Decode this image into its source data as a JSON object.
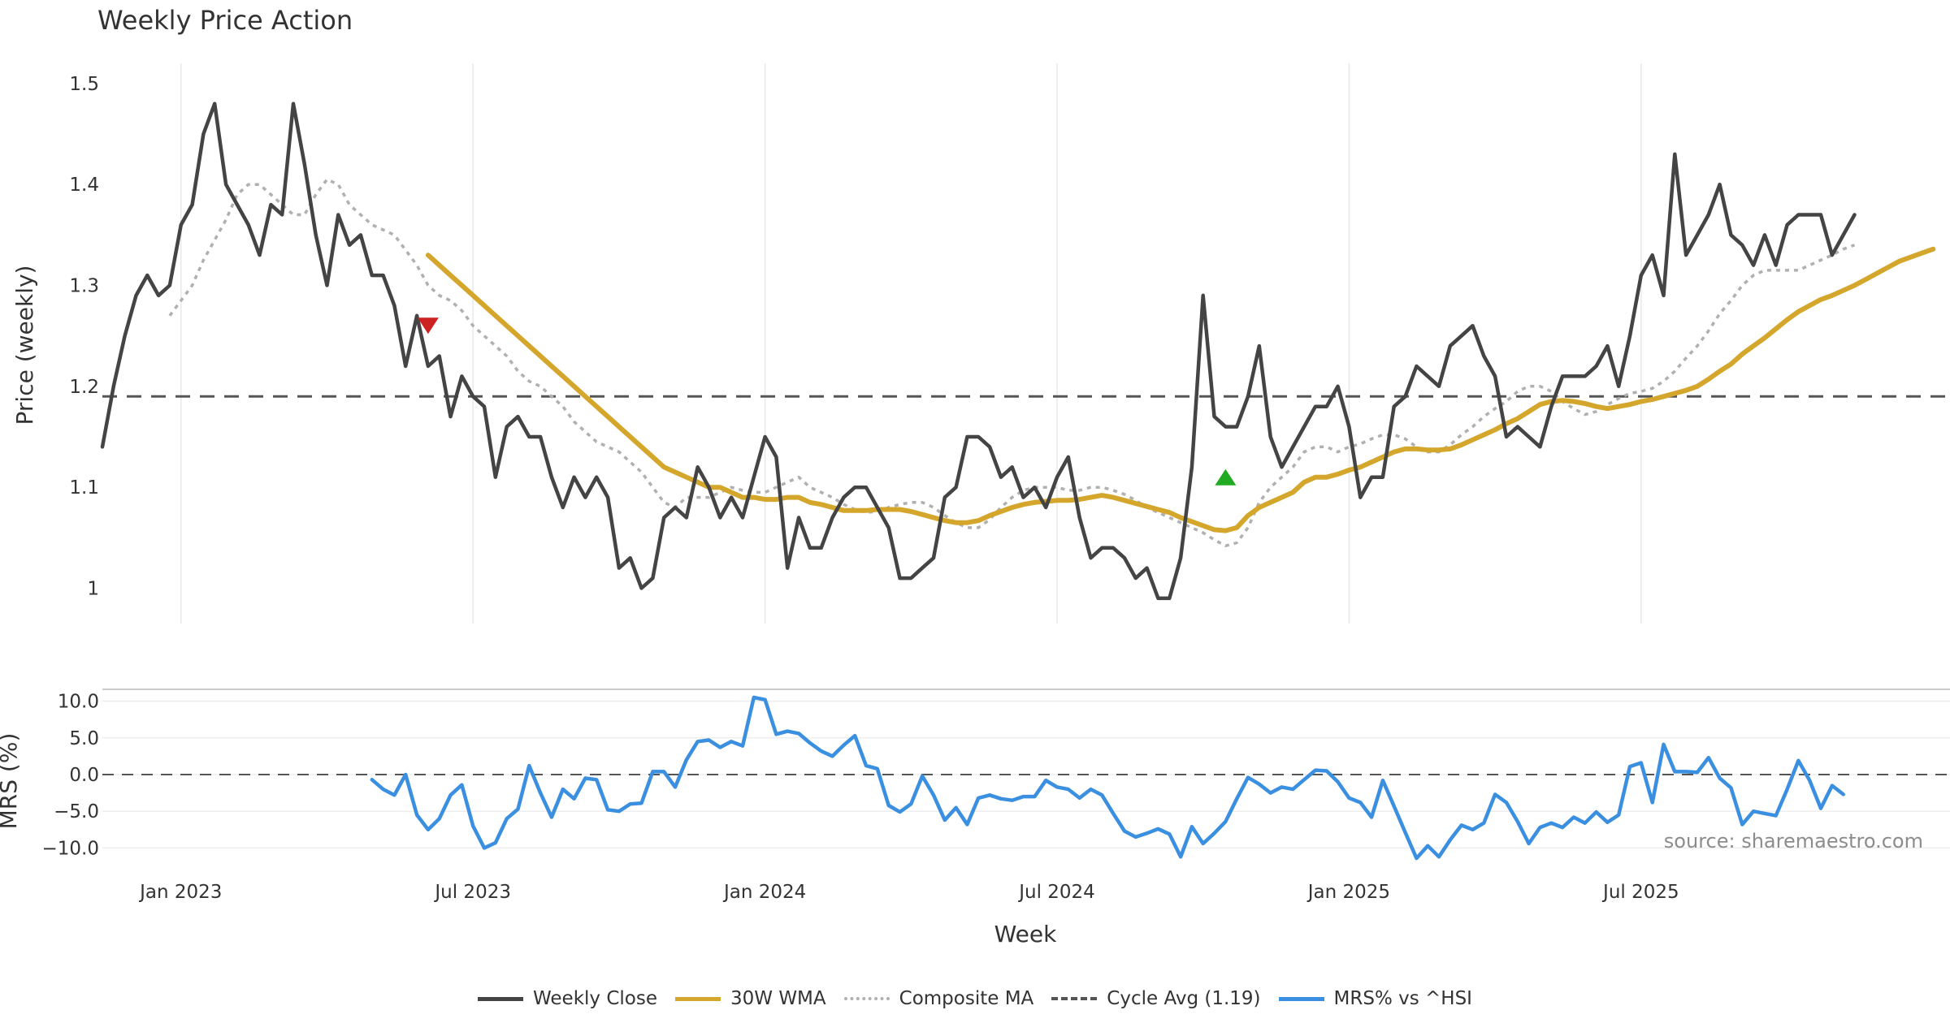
{
  "chart_data": {
    "type": "line",
    "title": "Weekly Price Action",
    "source": "source: sharemaestro.com",
    "xlabel": "Week",
    "x_ticks": [
      {
        "label": "Jan 2023",
        "week": 2
      },
      {
        "label": "Jul 2023",
        "week": 28
      },
      {
        "label": "Jan 2024",
        "week": 54
      },
      {
        "label": "Jul 2024",
        "week": 80
      },
      {
        "label": "Jan 2025",
        "week": 106
      },
      {
        "label": "Jul 2025",
        "week": 132
      }
    ],
    "x_range": [
      -5,
      159.5
    ],
    "price_panel": {
      "ylabel": "Price (weekly)",
      "ylim": [
        0.965,
        1.52
      ],
      "y_ticks": [
        {
          "label": "1",
          "value": 1.0
        },
        {
          "label": "1.1",
          "value": 1.1
        },
        {
          "label": "1.2",
          "value": 1.2
        },
        {
          "label": "1.3",
          "value": 1.3
        },
        {
          "label": "1.4",
          "value": 1.4
        },
        {
          "label": "1.5",
          "value": 1.5
        }
      ],
      "cycle_avg": 1.19,
      "series": [
        {
          "name": "Weekly Close",
          "color": "#444444",
          "start_week": -5,
          "values": [
            1.14,
            1.2,
            1.25,
            1.29,
            1.31,
            1.29,
            1.3,
            1.36,
            1.38,
            1.45,
            1.48,
            1.4,
            1.38,
            1.36,
            1.33,
            1.38,
            1.37,
            1.48,
            1.42,
            1.35,
            1.3,
            1.37,
            1.34,
            1.35,
            1.31,
            1.31,
            1.28,
            1.22,
            1.27,
            1.22,
            1.23,
            1.17,
            1.21,
            1.19,
            1.18,
            1.11,
            1.16,
            1.17,
            1.15,
            1.15,
            1.11,
            1.08,
            1.11,
            1.09,
            1.11,
            1.09,
            1.02,
            1.03,
            1.0,
            1.01,
            1.07,
            1.08,
            1.07,
            1.12,
            1.1,
            1.07,
            1.09,
            1.07,
            1.11,
            1.15,
            1.13,
            1.02,
            1.07,
            1.04,
            1.04,
            1.07,
            1.09,
            1.1,
            1.1,
            1.08,
            1.06,
            1.01,
            1.01,
            1.02,
            1.03,
            1.09,
            1.1,
            1.15,
            1.15,
            1.14,
            1.11,
            1.12,
            1.09,
            1.1,
            1.08,
            1.11,
            1.13,
            1.07,
            1.03,
            1.04,
            1.04,
            1.03,
            1.01,
            1.02,
            0.99,
            0.99,
            1.03,
            1.12,
            1.29,
            1.17,
            1.16,
            1.16,
            1.19,
            1.24,
            1.15,
            1.12,
            1.14,
            1.16,
            1.18,
            1.18,
            1.2,
            1.16,
            1.09,
            1.11,
            1.11,
            1.18,
            1.19,
            1.22,
            1.21,
            1.2,
            1.24,
            1.25,
            1.26,
            1.23,
            1.21,
            1.15,
            1.16,
            1.15,
            1.14,
            1.18,
            1.21,
            1.21,
            1.21,
            1.22,
            1.24,
            1.2,
            1.25,
            1.31,
            1.33,
            1.29,
            1.43,
            1.33,
            1.35,
            1.37,
            1.4,
            1.35,
            1.34,
            1.32,
            1.35,
            1.32,
            1.36,
            1.37,
            1.37,
            1.37,
            1.33,
            1.35,
            1.37
          ]
        },
        {
          "name": "30W WMA",
          "color": "#d4a72c",
          "start_week": 24,
          "values": [
            1.33,
            1.32,
            1.31,
            1.3,
            1.29,
            1.28,
            1.27,
            1.26,
            1.25,
            1.24,
            1.23,
            1.22,
            1.21,
            1.2,
            1.19,
            1.18,
            1.17,
            1.16,
            1.15,
            1.14,
            1.13,
            1.12,
            1.115,
            1.11,
            1.105,
            1.1,
            1.1,
            1.095,
            1.09,
            1.09,
            1.088,
            1.088,
            1.09,
            1.09,
            1.085,
            1.083,
            1.08,
            1.077,
            1.077,
            1.077,
            1.078,
            1.078,
            1.078,
            1.076,
            1.073,
            1.07,
            1.067,
            1.065,
            1.065,
            1.067,
            1.072,
            1.076,
            1.08,
            1.083,
            1.085,
            1.086,
            1.087,
            1.087,
            1.088,
            1.09,
            1.092,
            1.09,
            1.087,
            1.084,
            1.081,
            1.078,
            1.075,
            1.07,
            1.066,
            1.062,
            1.058,
            1.057,
            1.06,
            1.072,
            1.08,
            1.085,
            1.09,
            1.095,
            1.105,
            1.11,
            1.11,
            1.113,
            1.117,
            1.12,
            1.125,
            1.13,
            1.135,
            1.138,
            1.138,
            1.137,
            1.137,
            1.138,
            1.142,
            1.147,
            1.152,
            1.157,
            1.163,
            1.168,
            1.175,
            1.182,
            1.185,
            1.186,
            1.185,
            1.183,
            1.18,
            1.178,
            1.18,
            1.182,
            1.185,
            1.187,
            1.19,
            1.193,
            1.196,
            1.2,
            1.207,
            1.215,
            1.222,
            1.232,
            1.24,
            1.248,
            1.257,
            1.266,
            1.274,
            1.28,
            1.286,
            1.29,
            1.295,
            1.3,
            1.306,
            1.312,
            1.318,
            1.324,
            1.328,
            1.332,
            1.336
          ]
        },
        {
          "name": "Composite MA",
          "color": "#b0b0b0",
          "start_week": 1,
          "values": [
            1.27,
            1.285,
            1.3,
            1.325,
            1.345,
            1.365,
            1.39,
            1.4,
            1.4,
            1.39,
            1.38,
            1.37,
            1.37,
            1.39,
            1.405,
            1.4,
            1.38,
            1.37,
            1.36,
            1.355,
            1.35,
            1.335,
            1.32,
            1.3,
            1.29,
            1.285,
            1.275,
            1.26,
            1.25,
            1.24,
            1.23,
            1.215,
            1.205,
            1.2,
            1.19,
            1.18,
            1.165,
            1.155,
            1.145,
            1.14,
            1.135,
            1.125,
            1.115,
            1.1,
            1.085,
            1.08,
            1.09,
            1.09,
            1.09,
            1.095,
            1.1,
            1.097,
            1.095,
            1.095,
            1.1,
            1.105,
            1.11,
            1.1,
            1.095,
            1.09,
            1.083,
            1.078,
            1.075,
            1.076,
            1.08,
            1.083,
            1.085,
            1.085,
            1.08,
            1.072,
            1.065,
            1.06,
            1.06,
            1.068,
            1.08,
            1.09,
            1.097,
            1.1,
            1.1,
            1.1,
            1.097,
            1.097,
            1.1,
            1.1,
            1.097,
            1.093,
            1.087,
            1.08,
            1.075,
            1.07,
            1.065,
            1.06,
            1.055,
            1.048,
            1.042,
            1.045,
            1.06,
            1.085,
            1.1,
            1.11,
            1.12,
            1.135,
            1.14,
            1.14,
            1.135,
            1.14,
            1.143,
            1.148,
            1.152,
            1.152,
            1.148,
            1.14,
            1.135,
            1.135,
            1.142,
            1.152,
            1.16,
            1.17,
            1.178,
            1.185,
            1.195,
            1.2,
            1.2,
            1.195,
            1.185,
            1.178,
            1.172,
            1.175,
            1.182,
            1.188,
            1.193,
            1.195,
            1.198,
            1.205,
            1.215,
            1.228,
            1.24,
            1.255,
            1.272,
            1.285,
            1.3,
            1.31,
            1.315,
            1.315,
            1.315,
            1.315,
            1.32,
            1.325,
            1.33,
            1.336,
            1.34
          ]
        }
      ],
      "signals": [
        {
          "type": "sell",
          "week": 24,
          "value": 1.26,
          "color": "#cc2222"
        },
        {
          "type": "buy",
          "week": 95,
          "value": 1.11,
          "color": "#22aa22"
        }
      ]
    },
    "mrs_panel": {
      "ylabel": "MRS (%)",
      "ylim": [
        -11.5,
        11.5
      ],
      "y_ticks": [
        {
          "label": "−10.0",
          "value": -10
        },
        {
          "label": "−5.0",
          "value": -5
        },
        {
          "label": "0.0",
          "value": 0
        },
        {
          "label": "5.0",
          "value": 5
        },
        {
          "label": "10.0",
          "value": 10
        }
      ],
      "series": {
        "name": "MRS% vs ^HSI",
        "color": "#3b8fe0",
        "start_week": 19,
        "values": [
          -0.7,
          -2,
          -2.8,
          0,
          -5.5,
          -7.5,
          -6,
          -2.8,
          -1.4,
          -7,
          -10,
          -9.3,
          -6,
          -4.7,
          1.2,
          -2.5,
          -5.8,
          -2,
          -3.3,
          -0.5,
          -0.7,
          -4.8,
          -5,
          -4,
          -3.9,
          0.4,
          0.4,
          -1.7,
          2,
          4.5,
          4.7,
          3.7,
          4.5,
          3.9,
          10.5,
          10.2,
          5.5,
          5.9,
          5.6,
          4.3,
          3.2,
          2.5,
          4,
          5.3,
          1.2,
          0.8,
          -4.2,
          -5.1,
          -4,
          -0.2,
          -2.8,
          -6.2,
          -4.5,
          -6.8,
          -3.2,
          -2.8,
          -3.3,
          -3.5,
          -3,
          -3,
          -0.8,
          -1.7,
          -2,
          -3.2,
          -2,
          -2.8,
          -5.3,
          -7.7,
          -8.5,
          -8,
          -7.4,
          -8.1,
          -11.2,
          -7.1,
          -9.4,
          -8,
          -6.4,
          -3.3,
          -0.4,
          -1.3,
          -2.5,
          -1.7,
          -2,
          -0.7,
          0.6,
          0.5,
          -1,
          -3.2,
          -3.8,
          -5.8,
          -0.8,
          -4.3,
          -7.9,
          -11.4,
          -9.7,
          -11.2,
          -8.9,
          -6.9,
          -7.5,
          -6.6,
          -2.7,
          -3.8,
          -6.4,
          -9.4,
          -7.2,
          -6.6,
          -7.2,
          -5.8,
          -6.6,
          -5.1,
          -6.5,
          -5.5,
          1.1,
          1.6,
          -3.8,
          4.1,
          0.4,
          0.4,
          0.3,
          2.3,
          -0.5,
          -1.8,
          -6.8,
          -5,
          -5.3,
          -5.6,
          -2,
          1.9,
          -0.8,
          -4.6,
          -1.5,
          -2.7
        ]
      }
    },
    "legend": [
      {
        "label": "Weekly Close",
        "color": "#444444",
        "style": "solid"
      },
      {
        "label": "30W WMA",
        "color": "#d4a72c",
        "style": "solid"
      },
      {
        "label": "Composite MA",
        "color": "#b0b0b0",
        "style": "dotted"
      },
      {
        "label": "Cycle Avg (1.19)",
        "color": "#555555",
        "style": "dashed"
      },
      {
        "label": "MRS% vs ^HSI",
        "color": "#3b8fe0",
        "style": "solid"
      }
    ]
  }
}
